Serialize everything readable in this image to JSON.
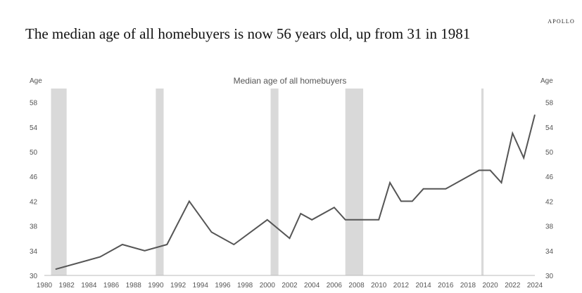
{
  "brand": "APOLLO",
  "headline": "The median age of all homebuyers is now 56 years old, up from 31 in 1981",
  "chart_data": {
    "type": "line",
    "title": "Median age of all homebuyers",
    "ylabel_left": "Age",
    "ylabel_right": "Age",
    "xlim": [
      1980,
      2024
    ],
    "ylim": [
      30,
      60
    ],
    "yticks": [
      30,
      34,
      38,
      42,
      46,
      50,
      54,
      58
    ],
    "xticks": [
      1980,
      1982,
      1984,
      1986,
      1988,
      1990,
      1992,
      1994,
      1996,
      1998,
      2000,
      2002,
      2004,
      2006,
      2008,
      2010,
      2012,
      2014,
      2016,
      2018,
      2020,
      2022,
      2024
    ],
    "line_color": "#555555",
    "recession_color": "#d9d9d9",
    "recessions": [
      [
        1980.6,
        1982.0
      ],
      [
        1990.0,
        1990.7
      ],
      [
        2000.3,
        2001.0
      ],
      [
        2007.0,
        2008.6
      ],
      [
        2019.2,
        2019.4
      ]
    ],
    "series": [
      {
        "x": [
          1981,
          1985,
          1987,
          1989,
          1991,
          1993,
          1995,
          1997,
          2000,
          2002,
          2003,
          2004,
          2006,
          2007,
          2010,
          2011,
          2012,
          2013,
          2014,
          2016,
          2019,
          2020,
          2021,
          2022,
          2023,
          2024
        ],
        "y": [
          31,
          33,
          35,
          34,
          35,
          42,
          37,
          35,
          39,
          36,
          40,
          39,
          41,
          39,
          39,
          45,
          42,
          42,
          44,
          44,
          47,
          47,
          45,
          53,
          49,
          56
        ]
      }
    ]
  }
}
